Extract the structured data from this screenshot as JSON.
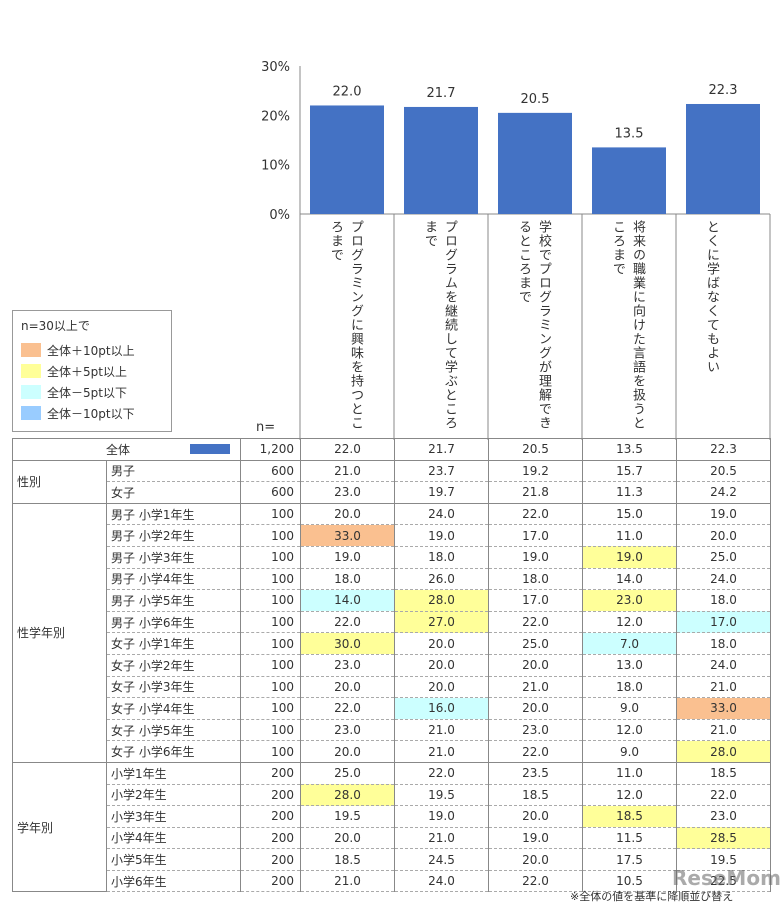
{
  "chart_data": {
    "type": "bar",
    "categories": [
      "プログラミングに興味を持つところまで",
      "プログラムを継続して学ぶところまで",
      "学校でプログラミングが理解できるところまで",
      "将来の職業に向けた言語を扱うところまで",
      "とくに学ばなくてもよい"
    ],
    "values": [
      22.0,
      21.7,
      20.5,
      13.5,
      22.3
    ],
    "value_labels": [
      "22.0",
      "21.7",
      "20.5",
      "13.5",
      "22.3"
    ],
    "yticks": [
      "30%",
      "20%",
      "10%",
      "0%"
    ],
    "ylim": [
      0,
      30
    ],
    "bar_color": "#4472c4",
    "legend": {
      "title": "n=30以上で",
      "items": [
        {
          "label": "全体＋10pt以上",
          "color": "#fac090"
        },
        {
          "label": "全体＋5pt以上",
          "color": "#ffff99"
        },
        {
          "label": "全体－5pt以下",
          "color": "#ccffff"
        },
        {
          "label": "全体－10pt以下",
          "color": "#99ccff"
        }
      ]
    },
    "n_header": "n=",
    "total_row": {
      "label": "全体",
      "n": "1,200",
      "values": [
        "22.0",
        "21.7",
        "20.5",
        "13.5",
        "22.3"
      ]
    },
    "groups": [
      {
        "label": "性別",
        "rows": [
          {
            "label": "男子",
            "n": "600",
            "values": [
              "21.0",
              "23.7",
              "19.2",
              "15.7",
              "20.5"
            ],
            "hl": [
              null,
              null,
              null,
              null,
              null
            ]
          },
          {
            "label": "女子",
            "n": "600",
            "values": [
              "23.0",
              "19.7",
              "21.8",
              "11.3",
              "24.2"
            ],
            "hl": [
              null,
              null,
              null,
              null,
              null
            ]
          }
        ]
      },
      {
        "label": "性学年別",
        "rows": [
          {
            "label": "男子  小学1年生",
            "n": "100",
            "values": [
              "20.0",
              "24.0",
              "22.0",
              "15.0",
              "19.0"
            ],
            "hl": [
              null,
              null,
              null,
              null,
              null
            ]
          },
          {
            "label": "男子  小学2年生",
            "n": "100",
            "values": [
              "33.0",
              "19.0",
              "17.0",
              "11.0",
              "20.0"
            ],
            "hl": [
              "#fac090",
              null,
              null,
              null,
              null
            ]
          },
          {
            "label": "男子  小学3年生",
            "n": "100",
            "values": [
              "19.0",
              "18.0",
              "19.0",
              "19.0",
              "25.0"
            ],
            "hl": [
              null,
              null,
              null,
              "#ffff99",
              null
            ]
          },
          {
            "label": "男子  小学4年生",
            "n": "100",
            "values": [
              "18.0",
              "26.0",
              "18.0",
              "14.0",
              "24.0"
            ],
            "hl": [
              null,
              null,
              null,
              null,
              null
            ]
          },
          {
            "label": "男子  小学5年生",
            "n": "100",
            "values": [
              "14.0",
              "28.0",
              "17.0",
              "23.0",
              "18.0"
            ],
            "hl": [
              "#ccffff",
              "#ffff99",
              null,
              "#ffff99",
              null
            ]
          },
          {
            "label": "男子  小学6年生",
            "n": "100",
            "values": [
              "22.0",
              "27.0",
              "22.0",
              "12.0",
              "17.0"
            ],
            "hl": [
              null,
              "#ffff99",
              null,
              null,
              "#ccffff"
            ]
          },
          {
            "label": "女子  小学1年生",
            "n": "100",
            "values": [
              "30.0",
              "20.0",
              "25.0",
              "7.0",
              "18.0"
            ],
            "hl": [
              "#ffff99",
              null,
              null,
              "#ccffff",
              null
            ]
          },
          {
            "label": "女子  小学2年生",
            "n": "100",
            "values": [
              "23.0",
              "20.0",
              "20.0",
              "13.0",
              "24.0"
            ],
            "hl": [
              null,
              null,
              null,
              null,
              null
            ]
          },
          {
            "label": "女子  小学3年生",
            "n": "100",
            "values": [
              "20.0",
              "20.0",
              "21.0",
              "18.0",
              "21.0"
            ],
            "hl": [
              null,
              null,
              null,
              null,
              null
            ]
          },
          {
            "label": "女子  小学4年生",
            "n": "100",
            "values": [
              "22.0",
              "16.0",
              "20.0",
              "9.0",
              "33.0"
            ],
            "hl": [
              null,
              "#ccffff",
              null,
              null,
              "#fac090"
            ]
          },
          {
            "label": "女子  小学5年生",
            "n": "100",
            "values": [
              "23.0",
              "21.0",
              "23.0",
              "12.0",
              "21.0"
            ],
            "hl": [
              null,
              null,
              null,
              null,
              null
            ]
          },
          {
            "label": "女子  小学6年生",
            "n": "100",
            "values": [
              "20.0",
              "21.0",
              "22.0",
              "9.0",
              "28.0"
            ],
            "hl": [
              null,
              null,
              null,
              null,
              "#ffff99"
            ]
          }
        ]
      },
      {
        "label": "学年別",
        "rows": [
          {
            "label": "小学1年生",
            "n": "200",
            "values": [
              "25.0",
              "22.0",
              "23.5",
              "11.0",
              "18.5"
            ],
            "hl": [
              null,
              null,
              null,
              null,
              null
            ]
          },
          {
            "label": "小学2年生",
            "n": "200",
            "values": [
              "28.0",
              "19.5",
              "18.5",
              "12.0",
              "22.0"
            ],
            "hl": [
              "#ffff99",
              null,
              null,
              null,
              null
            ]
          },
          {
            "label": "小学3年生",
            "n": "200",
            "values": [
              "19.5",
              "19.0",
              "20.0",
              "18.5",
              "23.0"
            ],
            "hl": [
              null,
              null,
              null,
              "#ffff99",
              null
            ]
          },
          {
            "label": "小学4年生",
            "n": "200",
            "values": [
              "20.0",
              "21.0",
              "19.0",
              "11.5",
              "28.5"
            ],
            "hl": [
              null,
              null,
              null,
              null,
              "#ffff99"
            ]
          },
          {
            "label": "小学5年生",
            "n": "200",
            "values": [
              "18.5",
              "24.5",
              "20.0",
              "17.5",
              "19.5"
            ],
            "hl": [
              null,
              null,
              null,
              null,
              null
            ]
          },
          {
            "label": "小学6年生",
            "n": "200",
            "values": [
              "21.0",
              "24.0",
              "22.0",
              "10.5",
              "22.5"
            ],
            "hl": [
              null,
              null,
              null,
              null,
              null
            ]
          }
        ]
      }
    ],
    "footnote": "※全体の値を基準に降順並び替え"
  },
  "watermark": "ReseMom"
}
